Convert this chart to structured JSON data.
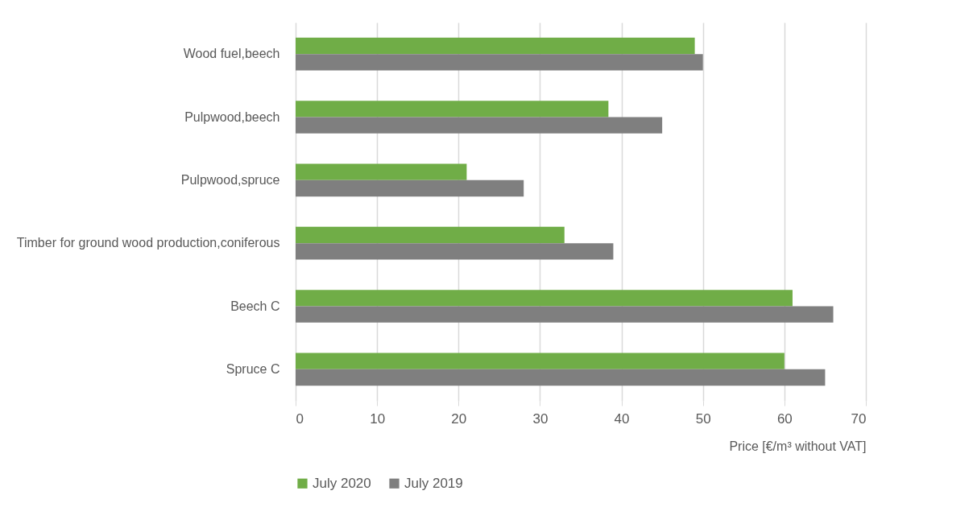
{
  "chart_data": {
    "type": "bar",
    "orientation": "horizontal",
    "xlabel": "Price [€/m³ without VAT]",
    "categories": [
      "Wood fuel,beech",
      "Pulpwood,beech",
      "Pulpwood,spruce",
      "Timber for ground wood production,coniferous",
      "Beech C",
      "Spruce C"
    ],
    "series": [
      {
        "name": "July 2020",
        "color": "#70ad47",
        "values": [
          49,
          38.4,
          21,
          33,
          61,
          60
        ]
      },
      {
        "name": "July 2019",
        "color": "#7f7f7f",
        "values": [
          50,
          45,
          28,
          39,
          66,
          65
        ]
      }
    ],
    "xlim": [
      0,
      70
    ],
    "xticks": [
      0,
      10,
      20,
      30,
      40,
      50,
      60,
      70
    ],
    "grid": "x",
    "legend": "bottom"
  }
}
